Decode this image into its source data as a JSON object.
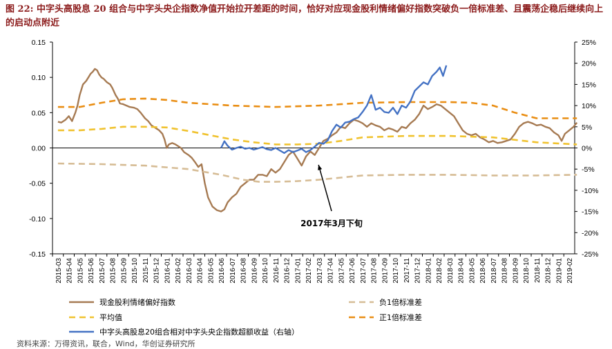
{
  "title": {
    "fig_label": "图 22:",
    "text": "中字头高股息 20 组合与中字头央企指数净值开始拉开差距的时间，恰好对应现金股利情绪偏好指数突破负一倍标准差、且震荡企稳后继续向上的启动点附近"
  },
  "source": "资料来源：万得资讯，联合，Wind，华创证券研究所",
  "chart_data": {
    "type": "line",
    "x_ticks": [
      "2015-03",
      "2015-04",
      "2015-05",
      "2015-06",
      "2015-07",
      "2015-08",
      "2015-09",
      "2015-10",
      "2015-11",
      "2015-12",
      "2016-01",
      "2016-02",
      "2016-03",
      "2016-04",
      "2016-05",
      "2016-06",
      "2016-07",
      "2016-08",
      "2016-09",
      "2016-10",
      "2016-11",
      "2016-12",
      "2017-01",
      "2017-02",
      "2017-03",
      "2017-04",
      "2017-05",
      "2017-06",
      "2017-07",
      "2017-08",
      "2017-09",
      "2017-10",
      "2017-11",
      "2017-12",
      "2018-01",
      "2018-02",
      "2018-03",
      "2018-04",
      "2018-05",
      "2018-06",
      "2018-07",
      "2018-08",
      "2018-09",
      "2018-10",
      "2018-11",
      "2018-12",
      "2019-01",
      "2019-02"
    ],
    "y_left": {
      "min": -0.15,
      "max": 0.15,
      "ticks": [
        "0.15",
        "0.10",
        "0.05",
        "0.00",
        "-0.05",
        "-0.10",
        "-0.15"
      ]
    },
    "y_right": {
      "min": -0.25,
      "max": 0.25,
      "ticks": [
        "25%",
        "20%",
        "15%",
        "10%",
        "5%",
        "0%",
        "-5%",
        "-10%",
        "-15%",
        "-20%",
        "-25%"
      ]
    },
    "annotation": {
      "text": "2017年3月下旬",
      "x": 23.7,
      "y": -0.018
    },
    "series": [
      {
        "name": "现金股利情绪偏好指数",
        "axis": "left",
        "color": "#A67A52",
        "style": "solid",
        "points": [
          [
            0,
            0.037
          ],
          [
            0.3,
            0.036
          ],
          [
            0.7,
            0.04
          ],
          [
            1,
            0.045
          ],
          [
            1.3,
            0.038
          ],
          [
            1.6,
            0.05
          ],
          [
            1.8,
            0.06
          ],
          [
            2,
            0.075
          ],
          [
            2.3,
            0.09
          ],
          [
            2.6,
            0.095
          ],
          [
            2.8,
            0.1
          ],
          [
            3,
            0.105
          ],
          [
            3.2,
            0.108
          ],
          [
            3.4,
            0.112
          ],
          [
            3.6,
            0.11
          ],
          [
            3.8,
            0.104
          ],
          [
            4,
            0.1
          ],
          [
            4.2,
            0.098
          ],
          [
            4.5,
            0.093
          ],
          [
            4.8,
            0.09
          ],
          [
            5,
            0.085
          ],
          [
            5.3,
            0.075
          ],
          [
            5.5,
            0.07
          ],
          [
            5.7,
            0.063
          ],
          [
            6,
            0.062
          ],
          [
            6.3,
            0.06
          ],
          [
            6.6,
            0.058
          ],
          [
            7,
            0.057
          ],
          [
            7.3,
            0.055
          ],
          [
            7.6,
            0.05
          ],
          [
            8,
            0.042
          ],
          [
            8.3,
            0.038
          ],
          [
            8.6,
            0.032
          ],
          [
            9,
            0.028
          ],
          [
            9.3,
            0.025
          ],
          [
            9.6,
            0.02
          ],
          [
            9.8,
            0.012
          ],
          [
            10,
            0.0
          ],
          [
            10.2,
            0.005
          ],
          [
            10.5,
            0.007
          ],
          [
            10.8,
            0.005
          ],
          [
            11,
            0.003
          ],
          [
            11.3,
            0.0
          ],
          [
            11.6,
            -0.006
          ],
          [
            12,
            -0.01
          ],
          [
            12.3,
            -0.014
          ],
          [
            12.6,
            -0.02
          ],
          [
            12.9,
            -0.027
          ],
          [
            13.2,
            -0.023
          ],
          [
            13.5,
            -0.05
          ],
          [
            13.8,
            -0.07
          ],
          [
            14.2,
            -0.083
          ],
          [
            14.6,
            -0.088
          ],
          [
            15,
            -0.09
          ],
          [
            15.3,
            -0.087
          ],
          [
            15.6,
            -0.077
          ],
          [
            16,
            -0.07
          ],
          [
            16.4,
            -0.065
          ],
          [
            16.8,
            -0.055
          ],
          [
            17.2,
            -0.05
          ],
          [
            17.6,
            -0.045
          ],
          [
            18,
            -0.045
          ],
          [
            18.4,
            -0.038
          ],
          [
            18.8,
            -0.038
          ],
          [
            19.2,
            -0.04
          ],
          [
            19.6,
            -0.03
          ],
          [
            20,
            -0.035
          ],
          [
            20.4,
            -0.03
          ],
          [
            20.8,
            -0.02
          ],
          [
            21.2,
            -0.01
          ],
          [
            21.6,
            -0.005
          ],
          [
            22,
            -0.015
          ],
          [
            22.4,
            -0.025
          ],
          [
            22.8,
            -0.012
          ],
          [
            23.2,
            -0.005
          ],
          [
            23.6,
            -0.01
          ],
          [
            24,
            0.0
          ],
          [
            24.4,
            0.01
          ],
          [
            24.8,
            0.013
          ],
          [
            25.2,
            0.018
          ],
          [
            25.6,
            0.022
          ],
          [
            26,
            0.03
          ],
          [
            26.4,
            0.028
          ],
          [
            26.8,
            0.035
          ],
          [
            27.2,
            0.04
          ],
          [
            27.6,
            0.038
          ],
          [
            28,
            0.035
          ],
          [
            28.4,
            0.03
          ],
          [
            28.8,
            0.035
          ],
          [
            29.2,
            0.032
          ],
          [
            29.6,
            0.03
          ],
          [
            30,
            0.025
          ],
          [
            30.4,
            0.028
          ],
          [
            30.8,
            0.026
          ],
          [
            31.2,
            0.023
          ],
          [
            31.6,
            0.03
          ],
          [
            32,
            0.028
          ],
          [
            32.4,
            0.035
          ],
          [
            32.8,
            0.04
          ],
          [
            33.2,
            0.048
          ],
          [
            33.6,
            0.06
          ],
          [
            34,
            0.055
          ],
          [
            34.4,
            0.058
          ],
          [
            34.8,
            0.062
          ],
          [
            35.2,
            0.06
          ],
          [
            35.6,
            0.055
          ],
          [
            36,
            0.05
          ],
          [
            36.4,
            0.045
          ],
          [
            36.8,
            0.035
          ],
          [
            37.2,
            0.025
          ],
          [
            37.6,
            0.02
          ],
          [
            38,
            0.018
          ],
          [
            38.4,
            0.02
          ],
          [
            38.8,
            0.015
          ],
          [
            39.2,
            0.012
          ],
          [
            39.6,
            0.008
          ],
          [
            40,
            0.01
          ],
          [
            40.4,
            0.007
          ],
          [
            40.8,
            0.008
          ],
          [
            41.2,
            0.01
          ],
          [
            41.6,
            0.012
          ],
          [
            42,
            0.02
          ],
          [
            42.4,
            0.03
          ],
          [
            42.8,
            0.035
          ],
          [
            43.2,
            0.037
          ],
          [
            43.6,
            0.035
          ],
          [
            44,
            0.032
          ],
          [
            44.4,
            0.033
          ],
          [
            44.8,
            0.03
          ],
          [
            45.2,
            0.028
          ],
          [
            45.6,
            0.022
          ],
          [
            46,
            0.018
          ],
          [
            46.3,
            0.01
          ],
          [
            46.6,
            0.02
          ],
          [
            47,
            0.025
          ],
          [
            47.4,
            0.03
          ],
          [
            47.7,
            0.036
          ]
        ]
      },
      {
        "name": "负1倍标准差",
        "axis": "left",
        "color": "#D6BC95",
        "style": "dash",
        "points": [
          [
            0,
            -0.022
          ],
          [
            4,
            -0.023
          ],
          [
            8,
            -0.025
          ],
          [
            12,
            -0.03
          ],
          [
            15,
            -0.038
          ],
          [
            17,
            -0.045
          ],
          [
            18.5,
            -0.048
          ],
          [
            20,
            -0.048
          ],
          [
            22,
            -0.047
          ],
          [
            24,
            -0.045
          ],
          [
            26,
            -0.042
          ],
          [
            28,
            -0.039
          ],
          [
            32,
            -0.038
          ],
          [
            36,
            -0.038
          ],
          [
            40,
            -0.039
          ],
          [
            44,
            -0.039
          ],
          [
            47.7,
            -0.038
          ]
        ]
      },
      {
        "name": "平均值",
        "axis": "left",
        "color": "#F0C22E",
        "style": "dash",
        "points": [
          [
            0,
            0.025
          ],
          [
            2,
            0.025
          ],
          [
            4,
            0.027
          ],
          [
            6,
            0.03
          ],
          [
            8,
            0.03
          ],
          [
            10,
            0.029
          ],
          [
            12,
            0.024
          ],
          [
            14,
            0.018
          ],
          [
            16,
            0.012
          ],
          [
            18,
            0.008
          ],
          [
            20,
            0.005
          ],
          [
            22,
            0.005
          ],
          [
            24,
            0.006
          ],
          [
            26,
            0.01
          ],
          [
            28,
            0.015
          ],
          [
            32,
            0.017
          ],
          [
            36,
            0.017
          ],
          [
            40,
            0.015
          ],
          [
            44,
            0.008
          ],
          [
            47.7,
            0.005
          ]
        ]
      },
      {
        "name": "正1倍标准差",
        "axis": "left",
        "color": "#E98D12",
        "style": "dash",
        "points": [
          [
            0,
            0.058
          ],
          [
            2,
            0.058
          ],
          [
            4,
            0.064
          ],
          [
            6,
            0.069
          ],
          [
            8,
            0.07
          ],
          [
            10,
            0.068
          ],
          [
            12,
            0.064
          ],
          [
            16,
            0.06
          ],
          [
            20,
            0.058
          ],
          [
            24,
            0.06
          ],
          [
            26,
            0.062
          ],
          [
            28,
            0.064
          ],
          [
            32,
            0.065
          ],
          [
            36,
            0.065
          ],
          [
            38,
            0.064
          ],
          [
            40,
            0.06
          ],
          [
            42,
            0.05
          ],
          [
            44,
            0.042
          ],
          [
            47.7,
            0.042
          ]
        ]
      },
      {
        "name": "中字头高股息20组合相对中字头央企指数超额收益（右轴）",
        "axis": "right",
        "color": "#4472C4",
        "style": "solid",
        "points": [
          [
            15,
            0.0
          ],
          [
            15.3,
            0.016
          ],
          [
            15.6,
            0.005
          ],
          [
            16,
            -0.004
          ],
          [
            16.4,
            0.0
          ],
          [
            16.8,
            0.003
          ],
          [
            17.2,
            -0.002
          ],
          [
            17.6,
            0.0
          ],
          [
            18,
            -0.004
          ],
          [
            18.4,
            -0.001
          ],
          [
            18.8,
            0.002
          ],
          [
            19.2,
            -0.003
          ],
          [
            19.6,
            -0.005
          ],
          [
            20,
            0.0
          ],
          [
            20.4,
            -0.006
          ],
          [
            20.8,
            -0.012
          ],
          [
            21.2,
            -0.005
          ],
          [
            21.6,
            -0.01
          ],
          [
            22,
            -0.006
          ],
          [
            22.4,
            -0.002
          ],
          [
            22.8,
            -0.01
          ],
          [
            23.2,
            -0.005
          ],
          [
            23.6,
            0.003
          ],
          [
            24,
            0.012
          ],
          [
            24.4,
            0.01
          ],
          [
            24.8,
            0.018
          ],
          [
            25.2,
            0.04
          ],
          [
            25.6,
            0.055
          ],
          [
            26,
            0.048
          ],
          [
            26.4,
            0.06
          ],
          [
            26.8,
            0.062
          ],
          [
            27.2,
            0.068
          ],
          [
            27.6,
            0.072
          ],
          [
            28,
            0.085
          ],
          [
            28.4,
            0.1
          ],
          [
            28.8,
            0.125
          ],
          [
            29.2,
            0.09
          ],
          [
            29.6,
            0.095
          ],
          [
            30,
            0.085
          ],
          [
            30.4,
            0.083
          ],
          [
            30.8,
            0.095
          ],
          [
            31.2,
            0.08
          ],
          [
            31.6,
            0.1
          ],
          [
            32,
            0.095
          ],
          [
            32.4,
            0.11
          ],
          [
            32.8,
            0.135
          ],
          [
            33.2,
            0.145
          ],
          [
            33.6,
            0.155
          ],
          [
            34,
            0.15
          ],
          [
            34.4,
            0.17
          ],
          [
            34.8,
            0.18
          ],
          [
            35.1,
            0.19
          ],
          [
            35.4,
            0.17
          ],
          [
            35.7,
            0.195
          ]
        ]
      }
    ]
  },
  "legend": [
    {
      "label": "现金股利情绪偏好指数",
      "color": "#A67A52",
      "style": "solid"
    },
    {
      "label": "负1倍标准差",
      "color": "#D6BC95",
      "style": "dash"
    },
    {
      "label": "平均值",
      "color": "#F0C22E",
      "style": "dash"
    },
    {
      "label": "正1倍标准差",
      "color": "#E98D12",
      "style": "dash"
    },
    {
      "label": "中字头高股息20组合相对中字头央企指数超额收益（右轴）",
      "color": "#4472C4",
      "style": "solid"
    }
  ]
}
